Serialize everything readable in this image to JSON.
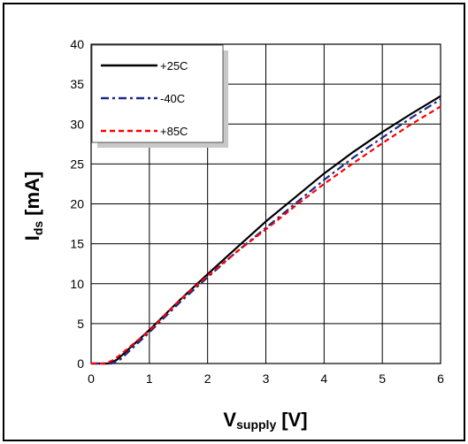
{
  "chart_data": {
    "type": "line",
    "title": "",
    "xlabel": {
      "main": "V",
      "sub": "supply",
      "unit": "[V]"
    },
    "ylabel": {
      "main": "I",
      "sub": "ds",
      "unit": "[mA]"
    },
    "xlim": [
      0,
      6
    ],
    "ylim": [
      0,
      40
    ],
    "x_ticks": [
      "0",
      "1",
      "2",
      "3",
      "4",
      "5",
      "6"
    ],
    "y_ticks": [
      "0",
      "5",
      "10",
      "15",
      "20",
      "25",
      "30",
      "35",
      "40"
    ],
    "grid": true,
    "legend_position": "top-left",
    "series": [
      {
        "name": "+25C",
        "color": "#000000",
        "dash": "solid",
        "x": [
          0,
          0.3,
          0.45,
          1,
          1.5,
          2,
          2.5,
          3,
          3.5,
          4,
          4.5,
          5,
          5.5,
          6
        ],
        "y": [
          0,
          0,
          0.5,
          4.2,
          7.8,
          11.2,
          14.5,
          17.8,
          20.8,
          23.8,
          26.5,
          29,
          31.3,
          33.5
        ]
      },
      {
        "name": "-40C",
        "color": "#1c2a8a",
        "dash": "dashdot",
        "x": [
          0,
          0.35,
          0.5,
          1,
          1.5,
          2,
          2.5,
          3,
          3.5,
          4,
          4.5,
          5,
          5.5,
          6
        ],
        "y": [
          0,
          0,
          0.5,
          3.9,
          7.5,
          10.8,
          14,
          17,
          20,
          23,
          25.8,
          28.3,
          30.8,
          33.1
        ]
      },
      {
        "name": "+85C",
        "color": "#ff0000",
        "dash": "dashed",
        "x": [
          0,
          0.25,
          0.4,
          1,
          1.5,
          2,
          2.5,
          3,
          3.5,
          4,
          4.5,
          5,
          5.5,
          6
        ],
        "y": [
          0,
          0,
          0.5,
          4.1,
          7.8,
          11,
          14,
          16.8,
          19.7,
          22.5,
          25.1,
          27.6,
          30,
          32.2
        ]
      }
    ]
  }
}
